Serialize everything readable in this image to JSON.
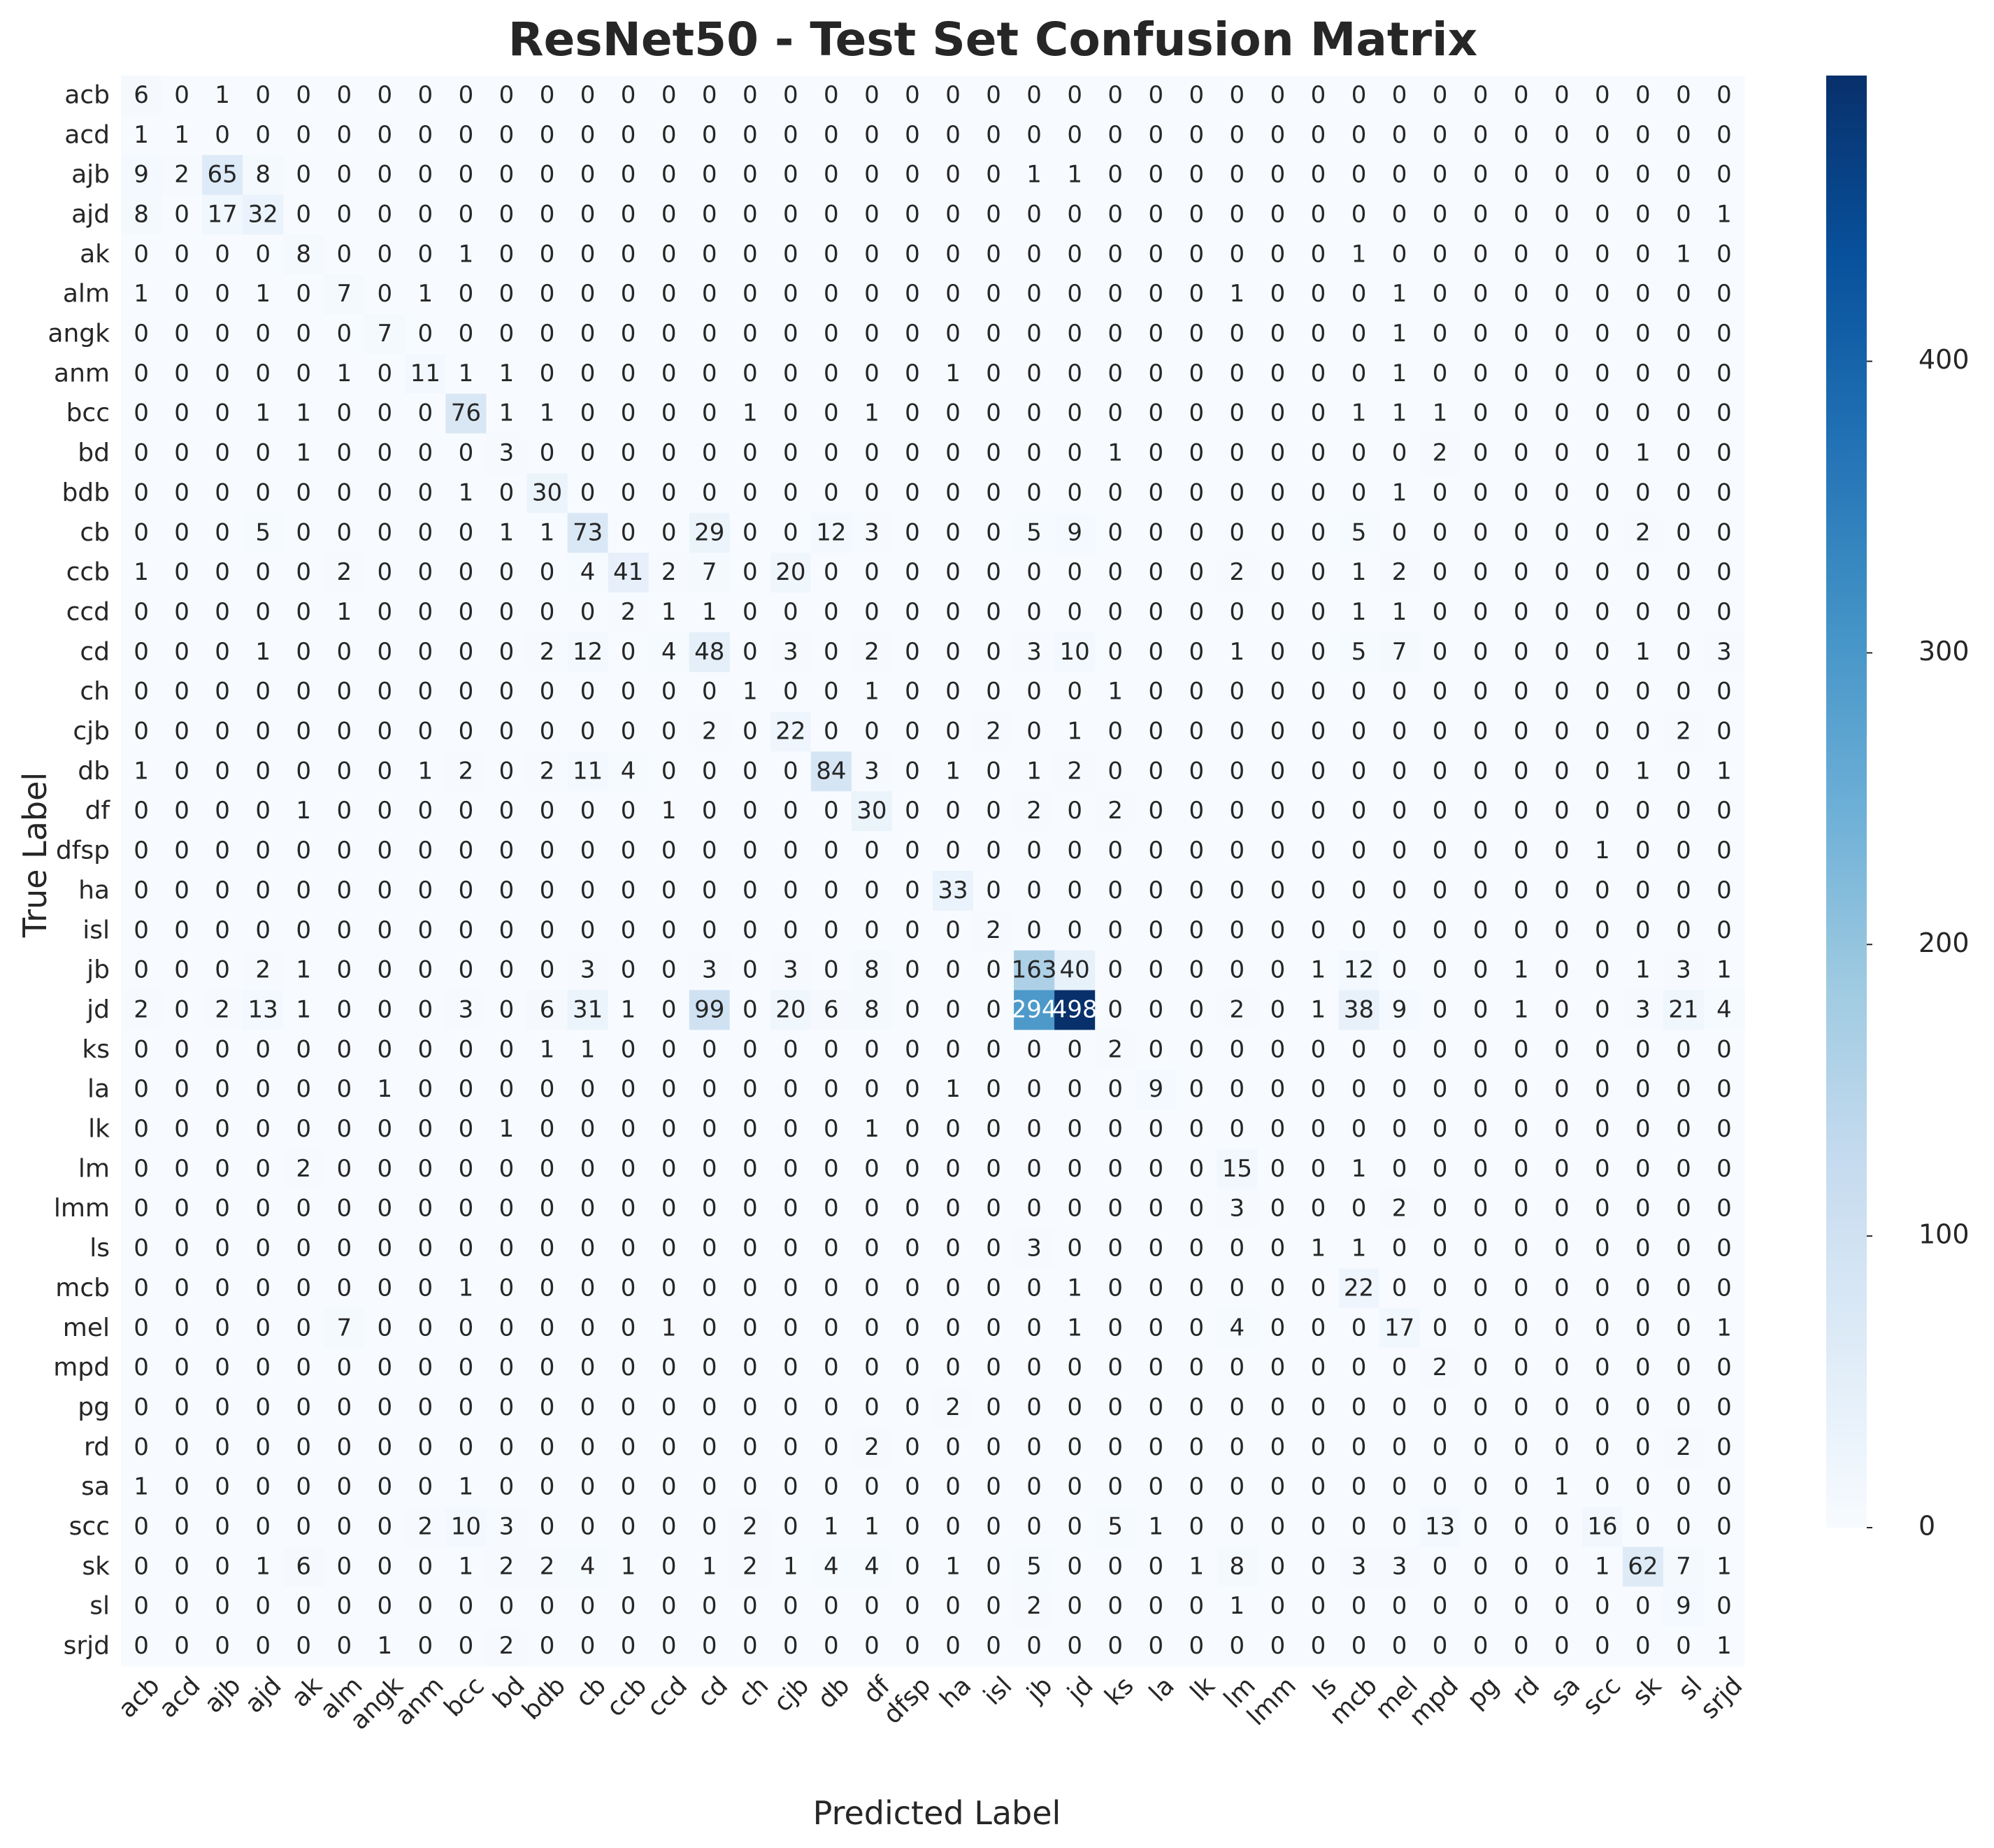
{
  "chart_data": {
    "type": "heatmap",
    "title": "ResNet50 - Test Set Confusion Matrix",
    "xlabel": "Predicted Label",
    "ylabel": "True Label",
    "labels": [
      "acb",
      "acd",
      "ajb",
      "ajd",
      "ak",
      "alm",
      "angk",
      "anm",
      "bcc",
      "bd",
      "bdb",
      "cb",
      "ccb",
      "ccd",
      "cd",
      "ch",
      "cjb",
      "db",
      "df",
      "dfsp",
      "ha",
      "isl",
      "jb",
      "jd",
      "ks",
      "la",
      "lk",
      "lm",
      "lmm",
      "ls",
      "mcb",
      "mel",
      "mpd",
      "pg",
      "rd",
      "sa",
      "scc",
      "sk",
      "sl",
      "srjd"
    ],
    "matrix": [
      [
        6,
        0,
        1,
        0,
        0,
        0,
        0,
        0,
        0,
        0,
        0,
        0,
        0,
        0,
        0,
        0,
        0,
        0,
        0,
        0,
        0,
        0,
        0,
        0,
        0,
        0,
        0,
        0,
        0,
        0,
        0,
        0,
        0,
        0,
        0,
        0,
        0,
        0,
        0,
        0
      ],
      [
        1,
        1,
        0,
        0,
        0,
        0,
        0,
        0,
        0,
        0,
        0,
        0,
        0,
        0,
        0,
        0,
        0,
        0,
        0,
        0,
        0,
        0,
        0,
        0,
        0,
        0,
        0,
        0,
        0,
        0,
        0,
        0,
        0,
        0,
        0,
        0,
        0,
        0,
        0,
        0
      ],
      [
        9,
        2,
        65,
        8,
        0,
        0,
        0,
        0,
        0,
        0,
        0,
        0,
        0,
        0,
        0,
        0,
        0,
        0,
        0,
        0,
        0,
        0,
        1,
        1,
        0,
        0,
        0,
        0,
        0,
        0,
        0,
        0,
        0,
        0,
        0,
        0,
        0,
        0,
        0,
        0
      ],
      [
        8,
        0,
        17,
        32,
        0,
        0,
        0,
        0,
        0,
        0,
        0,
        0,
        0,
        0,
        0,
        0,
        0,
        0,
        0,
        0,
        0,
        0,
        0,
        0,
        0,
        0,
        0,
        0,
        0,
        0,
        0,
        0,
        0,
        0,
        0,
        0,
        0,
        0,
        0,
        1
      ],
      [
        0,
        0,
        0,
        0,
        8,
        0,
        0,
        0,
        1,
        0,
        0,
        0,
        0,
        0,
        0,
        0,
        0,
        0,
        0,
        0,
        0,
        0,
        0,
        0,
        0,
        0,
        0,
        0,
        0,
        0,
        1,
        0,
        0,
        0,
        0,
        0,
        0,
        0,
        1,
        0
      ],
      [
        1,
        0,
        0,
        1,
        0,
        7,
        0,
        1,
        0,
        0,
        0,
        0,
        0,
        0,
        0,
        0,
        0,
        0,
        0,
        0,
        0,
        0,
        0,
        0,
        0,
        0,
        0,
        1,
        0,
        0,
        0,
        1,
        0,
        0,
        0,
        0,
        0,
        0,
        0,
        0
      ],
      [
        0,
        0,
        0,
        0,
        0,
        0,
        7,
        0,
        0,
        0,
        0,
        0,
        0,
        0,
        0,
        0,
        0,
        0,
        0,
        0,
        0,
        0,
        0,
        0,
        0,
        0,
        0,
        0,
        0,
        0,
        0,
        1,
        0,
        0,
        0,
        0,
        0,
        0,
        0,
        0
      ],
      [
        0,
        0,
        0,
        0,
        0,
        1,
        0,
        11,
        1,
        1,
        0,
        0,
        0,
        0,
        0,
        0,
        0,
        0,
        0,
        0,
        1,
        0,
        0,
        0,
        0,
        0,
        0,
        0,
        0,
        0,
        0,
        1,
        0,
        0,
        0,
        0,
        0,
        0,
        0,
        0
      ],
      [
        0,
        0,
        0,
        1,
        1,
        0,
        0,
        0,
        76,
        1,
        1,
        0,
        0,
        0,
        0,
        1,
        0,
        0,
        1,
        0,
        0,
        0,
        0,
        0,
        0,
        0,
        0,
        0,
        0,
        0,
        1,
        1,
        1,
        0,
        0,
        0,
        0,
        0,
        0,
        0
      ],
      [
        0,
        0,
        0,
        0,
        1,
        0,
        0,
        0,
        0,
        3,
        0,
        0,
        0,
        0,
        0,
        0,
        0,
        0,
        0,
        0,
        0,
        0,
        0,
        0,
        1,
        0,
        0,
        0,
        0,
        0,
        0,
        0,
        2,
        0,
        0,
        0,
        0,
        1,
        0,
        0
      ],
      [
        0,
        0,
        0,
        0,
        0,
        0,
        0,
        0,
        1,
        0,
        30,
        0,
        0,
        0,
        0,
        0,
        0,
        0,
        0,
        0,
        0,
        0,
        0,
        0,
        0,
        0,
        0,
        0,
        0,
        0,
        0,
        1,
        0,
        0,
        0,
        0,
        0,
        0,
        0,
        0
      ],
      [
        0,
        0,
        0,
        5,
        0,
        0,
        0,
        0,
        0,
        1,
        1,
        73,
        0,
        0,
        29,
        0,
        0,
        12,
        3,
        0,
        0,
        0,
        5,
        9,
        0,
        0,
        0,
        0,
        0,
        0,
        5,
        0,
        0,
        0,
        0,
        0,
        0,
        2,
        0,
        0
      ],
      [
        1,
        0,
        0,
        0,
        0,
        2,
        0,
        0,
        0,
        0,
        0,
        4,
        41,
        2,
        7,
        0,
        20,
        0,
        0,
        0,
        0,
        0,
        0,
        0,
        0,
        0,
        0,
        2,
        0,
        0,
        1,
        2,
        0,
        0,
        0,
        0,
        0,
        0,
        0,
        0
      ],
      [
        0,
        0,
        0,
        0,
        0,
        1,
        0,
        0,
        0,
        0,
        0,
        0,
        2,
        1,
        1,
        0,
        0,
        0,
        0,
        0,
        0,
        0,
        0,
        0,
        0,
        0,
        0,
        0,
        0,
        0,
        1,
        1,
        0,
        0,
        0,
        0,
        0,
        0,
        0,
        0
      ],
      [
        0,
        0,
        0,
        1,
        0,
        0,
        0,
        0,
        0,
        0,
        2,
        12,
        0,
        4,
        48,
        0,
        3,
        0,
        2,
        0,
        0,
        0,
        3,
        10,
        0,
        0,
        0,
        1,
        0,
        0,
        5,
        7,
        0,
        0,
        0,
        0,
        0,
        1,
        0,
        3
      ],
      [
        0,
        0,
        0,
        0,
        0,
        0,
        0,
        0,
        0,
        0,
        0,
        0,
        0,
        0,
        0,
        1,
        0,
        0,
        1,
        0,
        0,
        0,
        0,
        0,
        1,
        0,
        0,
        0,
        0,
        0,
        0,
        0,
        0,
        0,
        0,
        0,
        0,
        0,
        0,
        0
      ],
      [
        0,
        0,
        0,
        0,
        0,
        0,
        0,
        0,
        0,
        0,
        0,
        0,
        0,
        0,
        2,
        0,
        22,
        0,
        0,
        0,
        0,
        2,
        0,
        1,
        0,
        0,
        0,
        0,
        0,
        0,
        0,
        0,
        0,
        0,
        0,
        0,
        0,
        0,
        2,
        0
      ],
      [
        1,
        0,
        0,
        0,
        0,
        0,
        0,
        1,
        2,
        0,
        2,
        11,
        4,
        0,
        0,
        0,
        0,
        84,
        3,
        0,
        1,
        0,
        1,
        2,
        0,
        0,
        0,
        0,
        0,
        0,
        0,
        0,
        0,
        0,
        0,
        0,
        0,
        1,
        0,
        1
      ],
      [
        0,
        0,
        0,
        0,
        1,
        0,
        0,
        0,
        0,
        0,
        0,
        0,
        0,
        1,
        0,
        0,
        0,
        0,
        30,
        0,
        0,
        0,
        2,
        0,
        2,
        0,
        0,
        0,
        0,
        0,
        0,
        0,
        0,
        0,
        0,
        0,
        0,
        0,
        0,
        0
      ],
      [
        0,
        0,
        0,
        0,
        0,
        0,
        0,
        0,
        0,
        0,
        0,
        0,
        0,
        0,
        0,
        0,
        0,
        0,
        0,
        0,
        0,
        0,
        0,
        0,
        0,
        0,
        0,
        0,
        0,
        0,
        0,
        0,
        0,
        0,
        0,
        0,
        1,
        0,
        0,
        0
      ],
      [
        0,
        0,
        0,
        0,
        0,
        0,
        0,
        0,
        0,
        0,
        0,
        0,
        0,
        0,
        0,
        0,
        0,
        0,
        0,
        0,
        33,
        0,
        0,
        0,
        0,
        0,
        0,
        0,
        0,
        0,
        0,
        0,
        0,
        0,
        0,
        0,
        0,
        0,
        0,
        0
      ],
      [
        0,
        0,
        0,
        0,
        0,
        0,
        0,
        0,
        0,
        0,
        0,
        0,
        0,
        0,
        0,
        0,
        0,
        0,
        0,
        0,
        0,
        2,
        0,
        0,
        0,
        0,
        0,
        0,
        0,
        0,
        0,
        0,
        0,
        0,
        0,
        0,
        0,
        0,
        0,
        0
      ],
      [
        0,
        0,
        0,
        2,
        1,
        0,
        0,
        0,
        0,
        0,
        0,
        3,
        0,
        0,
        3,
        0,
        3,
        0,
        8,
        0,
        0,
        0,
        163,
        40,
        0,
        0,
        0,
        0,
        0,
        1,
        12,
        0,
        0,
        0,
        1,
        0,
        0,
        1,
        3,
        1
      ],
      [
        2,
        0,
        2,
        13,
        1,
        0,
        0,
        0,
        3,
        0,
        6,
        31,
        1,
        0,
        99,
        0,
        20,
        6,
        8,
        0,
        0,
        0,
        294,
        498,
        0,
        0,
        0,
        2,
        0,
        1,
        38,
        9,
        0,
        0,
        1,
        0,
        0,
        3,
        21,
        4
      ],
      [
        0,
        0,
        0,
        0,
        0,
        0,
        0,
        0,
        0,
        0,
        1,
        1,
        0,
        0,
        0,
        0,
        0,
        0,
        0,
        0,
        0,
        0,
        0,
        0,
        2,
        0,
        0,
        0,
        0,
        0,
        0,
        0,
        0,
        0,
        0,
        0,
        0,
        0,
        0,
        0
      ],
      [
        0,
        0,
        0,
        0,
        0,
        0,
        1,
        0,
        0,
        0,
        0,
        0,
        0,
        0,
        0,
        0,
        0,
        0,
        0,
        0,
        1,
        0,
        0,
        0,
        0,
        9,
        0,
        0,
        0,
        0,
        0,
        0,
        0,
        0,
        0,
        0,
        0,
        0,
        0,
        0
      ],
      [
        0,
        0,
        0,
        0,
        0,
        0,
        0,
        0,
        0,
        1,
        0,
        0,
        0,
        0,
        0,
        0,
        0,
        0,
        1,
        0,
        0,
        0,
        0,
        0,
        0,
        0,
        0,
        0,
        0,
        0,
        0,
        0,
        0,
        0,
        0,
        0,
        0,
        0,
        0,
        0
      ],
      [
        0,
        0,
        0,
        0,
        2,
        0,
        0,
        0,
        0,
        0,
        0,
        0,
        0,
        0,
        0,
        0,
        0,
        0,
        0,
        0,
        0,
        0,
        0,
        0,
        0,
        0,
        0,
        15,
        0,
        0,
        1,
        0,
        0,
        0,
        0,
        0,
        0,
        0,
        0,
        0
      ],
      [
        0,
        0,
        0,
        0,
        0,
        0,
        0,
        0,
        0,
        0,
        0,
        0,
        0,
        0,
        0,
        0,
        0,
        0,
        0,
        0,
        0,
        0,
        0,
        0,
        0,
        0,
        0,
        3,
        0,
        0,
        0,
        2,
        0,
        0,
        0,
        0,
        0,
        0,
        0,
        0
      ],
      [
        0,
        0,
        0,
        0,
        0,
        0,
        0,
        0,
        0,
        0,
        0,
        0,
        0,
        0,
        0,
        0,
        0,
        0,
        0,
        0,
        0,
        0,
        3,
        0,
        0,
        0,
        0,
        0,
        0,
        1,
        1,
        0,
        0,
        0,
        0,
        0,
        0,
        0,
        0,
        0
      ],
      [
        0,
        0,
        0,
        0,
        0,
        0,
        0,
        0,
        1,
        0,
        0,
        0,
        0,
        0,
        0,
        0,
        0,
        0,
        0,
        0,
        0,
        0,
        0,
        1,
        0,
        0,
        0,
        0,
        0,
        0,
        22,
        0,
        0,
        0,
        0,
        0,
        0,
        0,
        0,
        0
      ],
      [
        0,
        0,
        0,
        0,
        0,
        7,
        0,
        0,
        0,
        0,
        0,
        0,
        0,
        1,
        0,
        0,
        0,
        0,
        0,
        0,
        0,
        0,
        0,
        1,
        0,
        0,
        0,
        4,
        0,
        0,
        0,
        17,
        0,
        0,
        0,
        0,
        0,
        0,
        0,
        1
      ],
      [
        0,
        0,
        0,
        0,
        0,
        0,
        0,
        0,
        0,
        0,
        0,
        0,
        0,
        0,
        0,
        0,
        0,
        0,
        0,
        0,
        0,
        0,
        0,
        0,
        0,
        0,
        0,
        0,
        0,
        0,
        0,
        0,
        2,
        0,
        0,
        0,
        0,
        0,
        0,
        0
      ],
      [
        0,
        0,
        0,
        0,
        0,
        0,
        0,
        0,
        0,
        0,
        0,
        0,
        0,
        0,
        0,
        0,
        0,
        0,
        0,
        0,
        2,
        0,
        0,
        0,
        0,
        0,
        0,
        0,
        0,
        0,
        0,
        0,
        0,
        0,
        0,
        0,
        0,
        0,
        0,
        0
      ],
      [
        0,
        0,
        0,
        0,
        0,
        0,
        0,
        0,
        0,
        0,
        0,
        0,
        0,
        0,
        0,
        0,
        0,
        0,
        2,
        0,
        0,
        0,
        0,
        0,
        0,
        0,
        0,
        0,
        0,
        0,
        0,
        0,
        0,
        0,
        0,
        0,
        0,
        0,
        2,
        0
      ],
      [
        1,
        0,
        0,
        0,
        0,
        0,
        0,
        0,
        1,
        0,
        0,
        0,
        0,
        0,
        0,
        0,
        0,
        0,
        0,
        0,
        0,
        0,
        0,
        0,
        0,
        0,
        0,
        0,
        0,
        0,
        0,
        0,
        0,
        0,
        0,
        1,
        0,
        0,
        0,
        0
      ],
      [
        0,
        0,
        0,
        0,
        0,
        0,
        0,
        2,
        10,
        3,
        0,
        0,
        0,
        0,
        0,
        2,
        0,
        1,
        1,
        0,
        0,
        0,
        0,
        0,
        5,
        1,
        0,
        0,
        0,
        0,
        0,
        0,
        13,
        0,
        0,
        0,
        16,
        0,
        0,
        0
      ],
      [
        0,
        0,
        0,
        1,
        6,
        0,
        0,
        0,
        1,
        2,
        2,
        4,
        1,
        0,
        1,
        2,
        1,
        4,
        4,
        0,
        1,
        0,
        5,
        0,
        0,
        0,
        1,
        8,
        0,
        0,
        3,
        3,
        0,
        0,
        0,
        0,
        1,
        62,
        7,
        1
      ],
      [
        0,
        0,
        0,
        0,
        0,
        0,
        0,
        0,
        0,
        0,
        0,
        0,
        0,
        0,
        0,
        0,
        0,
        0,
        0,
        0,
        0,
        0,
        2,
        0,
        0,
        0,
        0,
        1,
        0,
        0,
        0,
        0,
        0,
        0,
        0,
        0,
        0,
        0,
        9,
        0
      ],
      [
        0,
        0,
        0,
        0,
        0,
        0,
        1,
        0,
        0,
        2,
        0,
        0,
        0,
        0,
        0,
        0,
        0,
        0,
        0,
        0,
        0,
        0,
        0,
        0,
        0,
        0,
        0,
        0,
        0,
        0,
        0,
        0,
        0,
        0,
        0,
        0,
        0,
        0,
        0,
        1
      ]
    ],
    "colorbar": {
      "min": 0,
      "max": 498,
      "ticks": [
        0,
        100,
        200,
        300,
        400
      ]
    },
    "colormap": "Blues",
    "colors": {
      "light": "#f7fbff",
      "dark": "#08306b",
      "text_dark": "#262626",
      "text_light": "#ffffff"
    }
  }
}
